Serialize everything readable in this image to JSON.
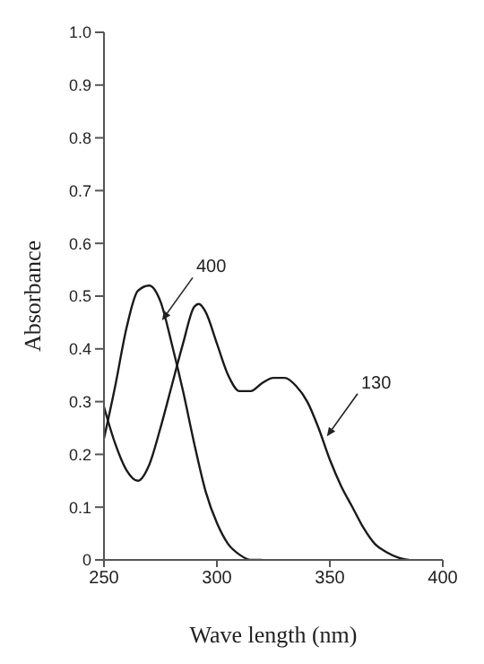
{
  "chart_data": {
    "type": "line",
    "xlabel": "Wave length (nm)",
    "ylabel": "Absorbance",
    "xlim": [
      250,
      400
    ],
    "xticks": [
      250,
      300,
      350,
      400
    ],
    "ylim": [
      0,
      1
    ],
    "yticks": [
      0,
      0.1,
      0.2,
      0.3,
      0.4,
      0.5,
      0.6,
      0.7,
      0.8,
      0.9,
      {
        "value": 1,
        "label": "1.0"
      }
    ],
    "marker": "none",
    "line_style": "solid",
    "series": [
      {
        "color": "#1a1a1a",
        "x": [
          250,
          255,
          260,
          265,
          270,
          275,
          280,
          285,
          290,
          295,
          300,
          305,
          310,
          315,
          320
        ],
        "values": [
          0.23,
          0.33,
          0.44,
          0.51,
          0.52,
          0.49,
          0.41,
          0.32,
          0.22,
          0.13,
          0.07,
          0.03,
          0.01,
          0,
          0
        ]
      },
      {
        "color": "#1a1a1a",
        "x": [
          250,
          255,
          260,
          265,
          270,
          275,
          280,
          285,
          290,
          292,
          295,
          300,
          305,
          310,
          315,
          320,
          325,
          330,
          335,
          340,
          345,
          350,
          355,
          360,
          365,
          370,
          375,
          380,
          385
        ],
        "values": [
          0.29,
          0.22,
          0.17,
          0.15,
          0.18,
          0.25,
          0.33,
          0.41,
          0.48,
          0.485,
          0.47,
          0.41,
          0.35,
          0.32,
          0.32,
          0.335,
          0.345,
          0.345,
          0.33,
          0.3,
          0.25,
          0.19,
          0.14,
          0.1,
          0.06,
          0.03,
          0.015,
          0.005,
          0
        ]
      }
    ],
    "annotations": [
      {
        "text": "400",
        "x": 275,
        "y": 0.45
      },
      {
        "text": "130",
        "x": 348,
        "y": 0.23
      }
    ]
  }
}
